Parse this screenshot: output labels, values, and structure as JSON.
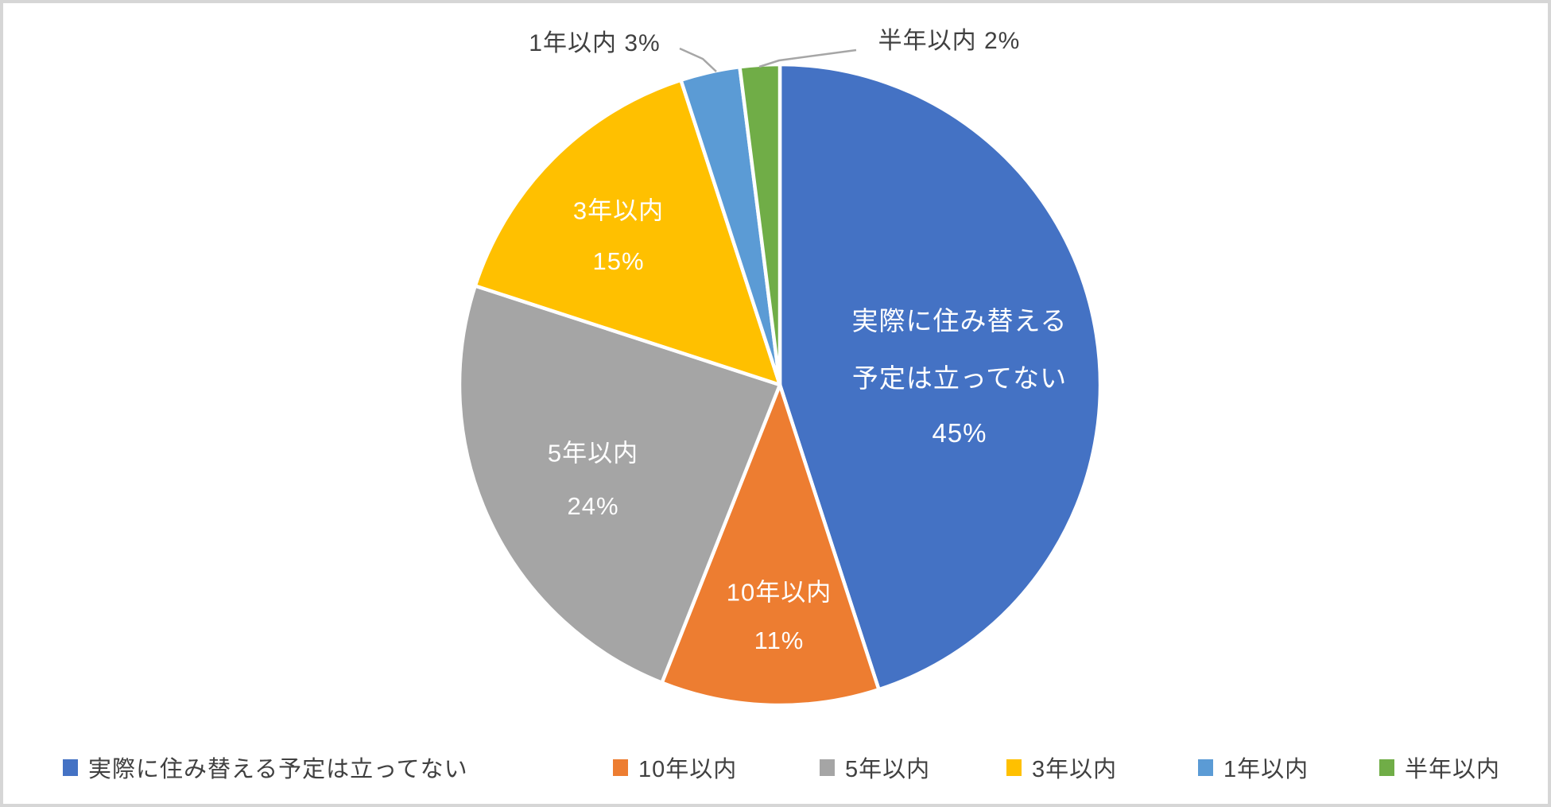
{
  "chart_data": {
    "type": "pie",
    "title": "",
    "start_angle_deg": 0,
    "direction": "clockwise",
    "units": "percent",
    "total": 100,
    "slices": [
      {
        "name": "実際に住み替える予定は立ってない",
        "value": 45,
        "pct_label": "45%",
        "color": "#4472C4",
        "label_placement": "inside",
        "label_lines": [
          "実際に住み替える",
          "予定は立ってない"
        ]
      },
      {
        "name": "10年以内",
        "value": 11,
        "pct_label": "11%",
        "color": "#ED7D31",
        "label_placement": "inside",
        "label_lines": [
          "10年以内"
        ]
      },
      {
        "name": "5年以内",
        "value": 24,
        "pct_label": "24%",
        "color": "#A5A5A5",
        "label_placement": "inside",
        "label_lines": [
          "5年以内"
        ]
      },
      {
        "name": "3年以内",
        "value": 15,
        "pct_label": "15%",
        "color": "#FFC000",
        "label_placement": "inside",
        "label_lines": [
          "3年以内"
        ]
      },
      {
        "name": "1年以内",
        "value": 3,
        "pct_label": "3%",
        "color": "#5B9BD5",
        "label_placement": "outside-callout",
        "callout_text": "1年以内 3%"
      },
      {
        "name": "半年以内",
        "value": 2,
        "pct_label": "2%",
        "color": "#70AD47",
        "label_placement": "outside-callout",
        "callout_text": "半年以内 2%"
      }
    ],
    "legend": {
      "position": "bottom",
      "items": [
        "実際に住み替える予定は立ってない",
        "10年以内",
        "5年以内",
        "3年以内",
        "1年以内",
        "半年以内"
      ]
    },
    "style": {
      "inside_label_color": "#FFFFFF",
      "outside_label_color": "#404040",
      "legend_text_color": "#404040",
      "leader_line_color": "#A6A6A6",
      "slice_border_color": "#FFFFFF",
      "frame_border_color": "#D6D6D6",
      "background": "#FFFFFF"
    }
  }
}
